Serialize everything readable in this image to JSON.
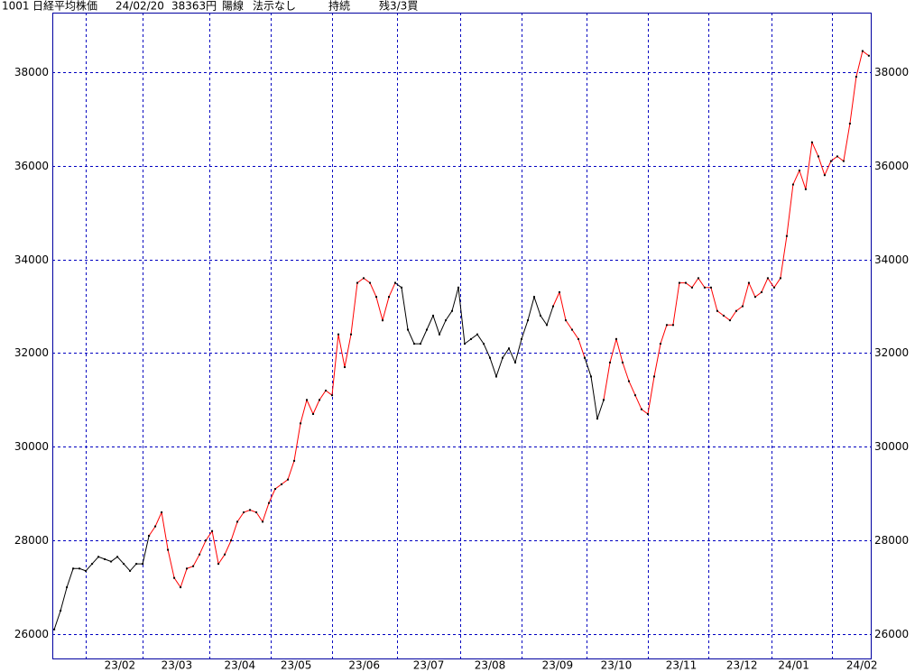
{
  "header": {
    "code": "1001",
    "name": "日経平均株価",
    "date": "24/02/20",
    "price": "38363円",
    "candle": "陽線",
    "display": "法示なし",
    "status": "持続",
    "position": "残3/3買"
  },
  "chart_data": {
    "type": "line",
    "xlim": [
      -0.3,
      129.3
    ],
    "xgrid": [
      5,
      14,
      24.6,
      34.3,
      44,
      54.3,
      64.3,
      74,
      84.3,
      94,
      103.6,
      113.6,
      123.1
    ],
    "xticks": [
      {
        "value": 10.4,
        "label": "23/02"
      },
      {
        "value": 19.4,
        "label": "23/03"
      },
      {
        "value": 29.4,
        "label": "23/04"
      },
      {
        "value": 38.3,
        "label": "23/05"
      },
      {
        "value": 49.1,
        "label": "23/06"
      },
      {
        "value": 59.3,
        "label": "23/07"
      },
      {
        "value": 69,
        "label": "23/08"
      },
      {
        "value": 79.7,
        "label": "23/09"
      },
      {
        "value": 89,
        "label": "23/10"
      },
      {
        "value": 99.3,
        "label": "23/11"
      },
      {
        "value": 108.9,
        "label": "23/12"
      },
      {
        "value": 117.1,
        "label": "24/01"
      },
      {
        "value": 127.9,
        "label": "24/02"
      }
    ],
    "ylim": [
      25480,
      39270
    ],
    "yticks": [
      26000,
      28000,
      30000,
      32000,
      34000,
      36000,
      38000
    ],
    "grid": true,
    "series": [
      {
        "color": "#000000",
        "values": [
          26100,
          26500,
          27000,
          27400,
          27400,
          27350,
          27500,
          27650,
          27600,
          27550,
          27650,
          27500,
          27350,
          27500,
          27500,
          28100,
          null,
          null,
          null,
          null,
          null,
          null,
          null,
          null,
          null,
          null,
          null,
          null,
          null,
          null,
          null,
          null,
          null,
          null,
          null,
          null,
          null,
          null,
          null,
          null,
          null,
          null,
          null,
          null,
          null,
          null,
          null,
          null,
          null,
          null,
          null,
          null,
          null,
          null,
          33500,
          33400,
          32500,
          32200,
          32200,
          32500,
          32800,
          32400,
          32700,
          32900,
          33400,
          32200,
          32300,
          32400,
          32200,
          31900,
          31500,
          31900,
          32100,
          31800,
          32300,
          32700,
          33200,
          32800,
          32600,
          33000,
          null,
          null,
          null,
          null,
          31900,
          31500,
          30600,
          31000,
          null,
          null,
          null,
          null,
          null,
          null,
          null,
          null,
          null,
          null,
          null,
          null,
          null,
          null,
          null,
          null,
          null,
          null,
          null,
          null,
          null,
          null,
          null,
          null,
          null,
          null,
          null,
          null,
          null,
          null,
          null,
          null,
          null,
          null,
          null,
          null,
          null,
          null,
          null,
          null,
          null,
          null
        ]
      },
      {
        "color": "#ff0000",
        "values": [
          null,
          null,
          null,
          null,
          null,
          null,
          null,
          null,
          null,
          null,
          null,
          null,
          null,
          null,
          null,
          28100,
          28300,
          28600,
          27800,
          27200,
          27000,
          27400,
          27450,
          27700,
          28000,
          28200,
          27500,
          27700,
          28000,
          28400,
          28600,
          28650,
          28600,
          28400,
          28800,
          29100,
          29200,
          29300,
          29700,
          30500,
          31000,
          30700,
          31000,
          31200,
          31100,
          32400,
          31700,
          32400,
          33500,
          33600,
          33500,
          33200,
          32700,
          33200,
          33500,
          null,
          null,
          null,
          null,
          null,
          null,
          null,
          null,
          null,
          null,
          null,
          null,
          null,
          null,
          null,
          null,
          null,
          null,
          null,
          null,
          null,
          null,
          null,
          null,
          33000,
          33300,
          32700,
          32500,
          32300,
          31900,
          null,
          null,
          31000,
          31800,
          32300,
          31800,
          31400,
          31100,
          30800,
          30700,
          31500,
          32200,
          32600,
          32600,
          33500,
          33500,
          33400,
          33600,
          33400,
          33400,
          32900,
          32800,
          32700,
          32900,
          33000,
          33500,
          33200,
          33300,
          33600,
          33400,
          33600,
          34500,
          35600,
          35900,
          35500,
          36500,
          36200,
          35800,
          36100,
          36200,
          36100,
          36900,
          37900,
          38450,
          38350
        ]
      }
    ]
  }
}
